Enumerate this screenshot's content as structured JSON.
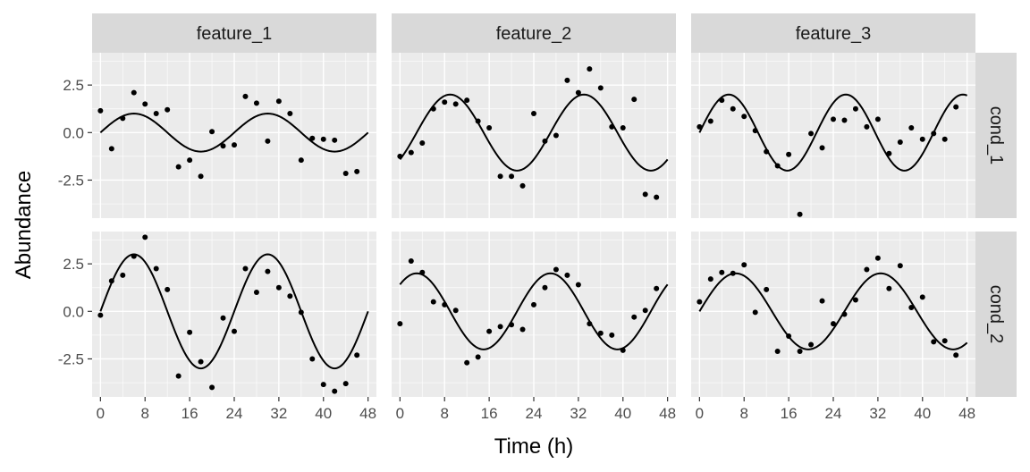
{
  "chart_data": {
    "type": "scatter",
    "layout": "facet_grid",
    "xlabel": "Time (h)",
    "ylabel": "Abundance",
    "xlim": [
      -1.5,
      49.5
    ],
    "ylim": [
      -4.5,
      4.2
    ],
    "x_ticks": [
      0,
      8,
      16,
      24,
      32,
      40,
      48
    ],
    "x_tick_labels": [
      "0",
      "8",
      "16",
      "24",
      "32",
      "40",
      "48"
    ],
    "y_ticks": [
      2.5,
      0.0,
      -2.5
    ],
    "y_tick_labels": [
      "2.5",
      "0.0",
      "-2.5"
    ],
    "grid": true,
    "columns": [
      "feature_1",
      "feature_2",
      "feature_3"
    ],
    "rows": [
      "cond_1",
      "cond_2"
    ],
    "panels": [
      {
        "feature": "feature_1",
        "condition": "cond_1",
        "fit": {
          "amplitude": 1.0,
          "period": 24,
          "peak_time": 6
        },
        "points": [
          [
            0,
            1.15
          ],
          [
            2,
            -0.85
          ],
          [
            4,
            0.75
          ],
          [
            6,
            2.1
          ],
          [
            8,
            1.5
          ],
          [
            10,
            1.0
          ],
          [
            12,
            1.2
          ],
          [
            14,
            -1.8
          ],
          [
            16,
            -1.45
          ],
          [
            18,
            -2.3
          ],
          [
            20,
            0.05
          ],
          [
            22,
            -0.7
          ],
          [
            24,
            -0.65
          ],
          [
            26,
            1.9
          ],
          [
            28,
            1.55
          ],
          [
            30,
            -0.45
          ],
          [
            32,
            1.65
          ],
          [
            34,
            1.0
          ],
          [
            36,
            -1.45
          ],
          [
            38,
            -0.3
          ],
          [
            40,
            -0.35
          ],
          [
            42,
            -0.4
          ],
          [
            44,
            -2.15
          ],
          [
            46,
            -2.05
          ]
        ]
      },
      {
        "feature": "feature_2",
        "condition": "cond_1",
        "fit": {
          "amplitude": 2.0,
          "period": 24,
          "peak_time": 9
        },
        "points": [
          [
            0,
            -1.25
          ],
          [
            2,
            -1.05
          ],
          [
            4,
            -0.55
          ],
          [
            6,
            1.25
          ],
          [
            8,
            1.6
          ],
          [
            10,
            1.5
          ],
          [
            12,
            1.7
          ],
          [
            14,
            0.6
          ],
          [
            16,
            0.25
          ],
          [
            18,
            -2.3
          ],
          [
            20,
            -2.3
          ],
          [
            22,
            -2.8
          ],
          [
            24,
            1.0
          ],
          [
            26,
            -0.45
          ],
          [
            28,
            -0.15
          ],
          [
            30,
            2.75
          ],
          [
            32,
            2.1
          ],
          [
            34,
            3.35
          ],
          [
            36,
            2.35
          ],
          [
            38,
            0.3
          ],
          [
            40,
            0.25
          ],
          [
            42,
            1.75
          ],
          [
            44,
            -3.25
          ],
          [
            46,
            -3.4
          ]
        ]
      },
      {
        "feature": "feature_3",
        "condition": "cond_1",
        "fit": {
          "amplitude": 2.0,
          "period": 21,
          "peak_time": 5.25
        },
        "points": [
          [
            0,
            0.3
          ],
          [
            2,
            0.6
          ],
          [
            4,
            1.7
          ],
          [
            6,
            1.25
          ],
          [
            8,
            0.85
          ],
          [
            10,
            0.1
          ],
          [
            12,
            -1.0
          ],
          [
            14,
            -1.75
          ],
          [
            16,
            -1.15
          ],
          [
            18,
            -4.3
          ],
          [
            20,
            -0.05
          ],
          [
            22,
            -0.8
          ],
          [
            24,
            0.7
          ],
          [
            26,
            0.65
          ],
          [
            28,
            1.25
          ],
          [
            30,
            0.3
          ],
          [
            32,
            0.7
          ],
          [
            34,
            -1.1
          ],
          [
            36,
            -0.5
          ],
          [
            38,
            0.25
          ],
          [
            40,
            -0.35
          ],
          [
            42,
            -0.05
          ],
          [
            44,
            -0.35
          ],
          [
            46,
            1.35
          ]
        ]
      },
      {
        "feature": "feature_1",
        "condition": "cond_2",
        "fit": {
          "amplitude": 3.0,
          "period": 24,
          "peak_time": 6
        },
        "points": [
          [
            0,
            -0.2
          ],
          [
            2,
            1.6
          ],
          [
            4,
            1.9
          ],
          [
            6,
            2.9
          ],
          [
            8,
            3.9
          ],
          [
            10,
            2.25
          ],
          [
            12,
            1.15
          ],
          [
            14,
            -3.4
          ],
          [
            16,
            -1.1
          ],
          [
            18,
            -2.65
          ],
          [
            20,
            -4.0
          ],
          [
            22,
            -0.35
          ],
          [
            24,
            -1.05
          ],
          [
            26,
            2.25
          ],
          [
            28,
            1.0
          ],
          [
            30,
            2.1
          ],
          [
            32,
            1.25
          ],
          [
            34,
            0.8
          ],
          [
            36,
            -0.05
          ],
          [
            38,
            -2.5
          ],
          [
            40,
            -3.85
          ],
          [
            42,
            -4.2
          ],
          [
            44,
            -3.8
          ],
          [
            46,
            -2.3
          ]
        ]
      },
      {
        "feature": "feature_2",
        "condition": "cond_2",
        "fit": {
          "amplitude": 2.0,
          "period": 24,
          "peak_time": 3
        },
        "points": [
          [
            0,
            -0.65
          ],
          [
            2,
            2.65
          ],
          [
            4,
            2.05
          ],
          [
            6,
            0.5
          ],
          [
            8,
            0.35
          ],
          [
            10,
            0.05
          ],
          [
            12,
            -2.7
          ],
          [
            14,
            -2.4
          ],
          [
            16,
            -1.05
          ],
          [
            18,
            -0.8
          ],
          [
            20,
            -0.7
          ],
          [
            22,
            -0.95
          ],
          [
            24,
            0.35
          ],
          [
            26,
            1.25
          ],
          [
            28,
            2.2
          ],
          [
            30,
            1.9
          ],
          [
            32,
            1.4
          ],
          [
            34,
            -0.65
          ],
          [
            36,
            -1.15
          ],
          [
            38,
            -1.25
          ],
          [
            40,
            -2.05
          ],
          [
            42,
            -0.3
          ],
          [
            44,
            0.05
          ],
          [
            46,
            1.2
          ]
        ]
      },
      {
        "feature": "feature_3",
        "condition": "cond_2",
        "fit": {
          "amplitude": 2.0,
          "period": 26,
          "peak_time": 6.5
        },
        "points": [
          [
            0,
            0.5
          ],
          [
            2,
            1.7
          ],
          [
            4,
            2.05
          ],
          [
            6,
            2.0
          ],
          [
            8,
            2.45
          ],
          [
            10,
            -0.05
          ],
          [
            12,
            1.15
          ],
          [
            14,
            -2.1
          ],
          [
            16,
            -1.3
          ],
          [
            18,
            -2.1
          ],
          [
            20,
            -1.75
          ],
          [
            22,
            0.55
          ],
          [
            24,
            -0.65
          ],
          [
            26,
            -0.15
          ],
          [
            28,
            0.6
          ],
          [
            30,
            2.2
          ],
          [
            32,
            2.8
          ],
          [
            34,
            1.2
          ],
          [
            36,
            2.4
          ],
          [
            38,
            0.2
          ],
          [
            40,
            0.75
          ],
          [
            42,
            -1.6
          ],
          [
            44,
            -1.55
          ],
          [
            46,
            -2.3
          ]
        ]
      }
    ]
  }
}
